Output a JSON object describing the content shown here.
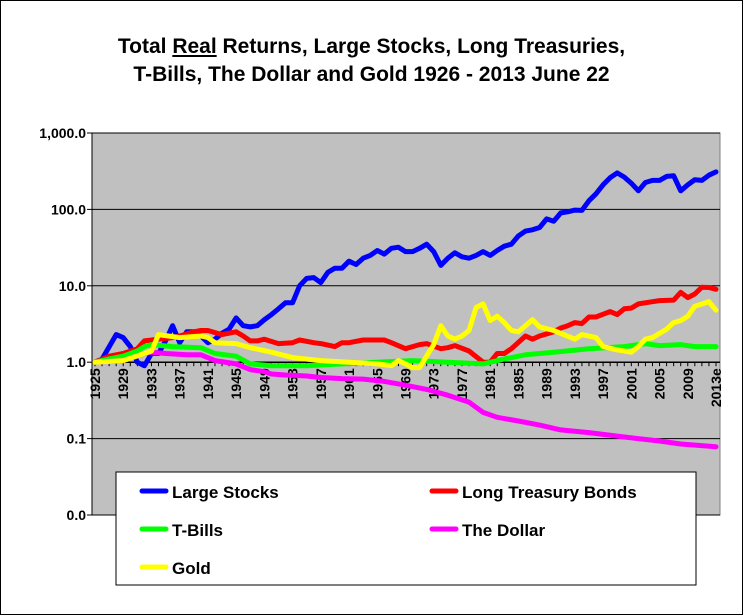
{
  "chart_data": {
    "type": "line",
    "title_line1_pre": "Total ",
    "title_underlined": "Real",
    "title_line1_post": " Returns, Large Stocks, Long Treasuries,",
    "title_line2": "T-Bills, The Dollar and Gold 1926 - 2013 June 22",
    "y_scale": "log",
    "ylim": [
      0.01,
      1000
    ],
    "y_tick_labels": [
      "1,000.0",
      "100.0",
      "10.0",
      "1.0",
      "0.1",
      "0.0"
    ],
    "y_tick_values": [
      1000,
      100,
      10,
      1,
      0.1,
      0.01
    ],
    "xlim": [
      1925,
      2013
    ],
    "x_tick_labels": [
      "1925",
      "1929",
      "1933",
      "1937",
      "1941",
      "1945",
      "1949",
      "1953",
      "1957",
      "1961",
      "1965",
      "1969",
      "1973",
      "1977",
      "1981",
      "1985",
      "1989",
      "1993",
      "1997",
      "2001",
      "2005",
      "2009",
      "2013e"
    ],
    "grid": "horizontal major lines",
    "plot_background": "#c0c0c0",
    "legend_position": "bottom (overlapping plot)",
    "series": [
      {
        "name": "Large Stocks",
        "color": "#0000ff",
        "points": [
          [
            1925,
            1.0
          ],
          [
            1926,
            1.1
          ],
          [
            1928,
            2.3
          ],
          [
            1929,
            2.1
          ],
          [
            1930,
            1.6
          ],
          [
            1931,
            1.0
          ],
          [
            1932,
            0.9
          ],
          [
            1933,
            1.3
          ],
          [
            1934,
            1.3
          ],
          [
            1935,
            1.9
          ],
          [
            1936,
            3.0
          ],
          [
            1937,
            1.8
          ],
          [
            1938,
            2.5
          ],
          [
            1939,
            2.5
          ],
          [
            1940,
            2.2
          ],
          [
            1941,
            1.8
          ],
          [
            1942,
            2.0
          ],
          [
            1943,
            2.4
          ],
          [
            1944,
            2.7
          ],
          [
            1945,
            3.8
          ],
          [
            1946,
            3.0
          ],
          [
            1947,
            2.9
          ],
          [
            1948,
            3.0
          ],
          [
            1949,
            3.6
          ],
          [
            1950,
            4.2
          ],
          [
            1951,
            5.0
          ],
          [
            1952,
            6.0
          ],
          [
            1953,
            6.0
          ],
          [
            1954,
            10
          ],
          [
            1955,
            12.5
          ],
          [
            1956,
            12.8
          ],
          [
            1957,
            11
          ],
          [
            1958,
            15
          ],
          [
            1959,
            17
          ],
          [
            1960,
            17
          ],
          [
            1961,
            21
          ],
          [
            1962,
            19
          ],
          [
            1963,
            23
          ],
          [
            1964,
            25
          ],
          [
            1965,
            29
          ],
          [
            1966,
            26
          ],
          [
            1967,
            31
          ],
          [
            1968,
            32
          ],
          [
            1969,
            28
          ],
          [
            1970,
            28
          ],
          [
            1971,
            31
          ],
          [
            1972,
            35
          ],
          [
            1973,
            28
          ],
          [
            1974,
            18.5
          ],
          [
            1975,
            23
          ],
          [
            1976,
            27
          ],
          [
            1977,
            24
          ],
          [
            1978,
            23
          ],
          [
            1979,
            25
          ],
          [
            1980,
            28
          ],
          [
            1981,
            25
          ],
          [
            1982,
            29
          ],
          [
            1983,
            33
          ],
          [
            1984,
            35
          ],
          [
            1985,
            45
          ],
          [
            1986,
            52
          ],
          [
            1987,
            54
          ],
          [
            1988,
            58
          ],
          [
            1989,
            75
          ],
          [
            1990,
            70
          ],
          [
            1991,
            90
          ],
          [
            1992,
            93
          ],
          [
            1993,
            98
          ],
          [
            1994,
            97
          ],
          [
            1995,
            130
          ],
          [
            1996,
            160
          ],
          [
            1997,
            210
          ],
          [
            1998,
            260
          ],
          [
            1999,
            300
          ],
          [
            2000,
            265
          ],
          [
            2001,
            220
          ],
          [
            2002,
            175
          ],
          [
            2003,
            225
          ],
          [
            2004,
            240
          ],
          [
            2005,
            240
          ],
          [
            2006,
            270
          ],
          [
            2007,
            275
          ],
          [
            2008,
            175
          ],
          [
            2009,
            210
          ],
          [
            2010,
            245
          ],
          [
            2011,
            240
          ],
          [
            2012,
            280
          ],
          [
            2013,
            310
          ]
        ]
      },
      {
        "name": "Long Treasury Bonds",
        "color": "#ff0000",
        "points": [
          [
            1925,
            1.0
          ],
          [
            1927,
            1.2
          ],
          [
            1929,
            1.3
          ],
          [
            1931,
            1.5
          ],
          [
            1932,
            1.9
          ],
          [
            1934,
            2.0
          ],
          [
            1936,
            2.1
          ],
          [
            1937,
            2.2
          ],
          [
            1939,
            2.5
          ],
          [
            1940,
            2.6
          ],
          [
            1941,
            2.6
          ],
          [
            1943,
            2.3
          ],
          [
            1945,
            2.5
          ],
          [
            1946,
            2.2
          ],
          [
            1947,
            1.9
          ],
          [
            1948,
            1.9
          ],
          [
            1949,
            2.0
          ],
          [
            1951,
            1.75
          ],
          [
            1953,
            1.8
          ],
          [
            1954,
            1.95
          ],
          [
            1956,
            1.8
          ],
          [
            1957,
            1.75
          ],
          [
            1959,
            1.6
          ],
          [
            1960,
            1.8
          ],
          [
            1961,
            1.8
          ],
          [
            1963,
            1.95
          ],
          [
            1966,
            1.95
          ],
          [
            1967,
            1.8
          ],
          [
            1969,
            1.5
          ],
          [
            1970,
            1.6
          ],
          [
            1971,
            1.7
          ],
          [
            1972,
            1.75
          ],
          [
            1974,
            1.5
          ],
          [
            1975,
            1.55
          ],
          [
            1976,
            1.65
          ],
          [
            1978,
            1.4
          ],
          [
            1980,
            1.0
          ],
          [
            1981,
            1.0
          ],
          [
            1982,
            1.3
          ],
          [
            1983,
            1.3
          ],
          [
            1984,
            1.5
          ],
          [
            1986,
            2.2
          ],
          [
            1987,
            2.0
          ],
          [
            1988,
            2.2
          ],
          [
            1990,
            2.5
          ],
          [
            1991,
            2.8
          ],
          [
            1992,
            3.0
          ],
          [
            1993,
            3.3
          ],
          [
            1994,
            3.2
          ],
          [
            1995,
            3.9
          ],
          [
            1996,
            3.9
          ],
          [
            1998,
            4.6
          ],
          [
            1999,
            4.2
          ],
          [
            2000,
            5.0
          ],
          [
            2001,
            5.1
          ],
          [
            2002,
            5.8
          ],
          [
            2004,
            6.2
          ],
          [
            2005,
            6.4
          ],
          [
            2007,
            6.5
          ],
          [
            2008,
            8.2
          ],
          [
            2009,
            7.0
          ],
          [
            2010,
            7.8
          ],
          [
            2011,
            9.6
          ],
          [
            2012,
            9.5
          ],
          [
            2013,
            9.0
          ]
        ]
      },
      {
        "name": "T-Bills",
        "color": "#00ff00",
        "points": [
          [
            1925,
            1.0
          ],
          [
            1927,
            1.1
          ],
          [
            1929,
            1.2
          ],
          [
            1931,
            1.4
          ],
          [
            1932,
            1.6
          ],
          [
            1933,
            1.7
          ],
          [
            1936,
            1.6
          ],
          [
            1940,
            1.55
          ],
          [
            1942,
            1.3
          ],
          [
            1945,
            1.2
          ],
          [
            1947,
            0.95
          ],
          [
            1950,
            0.9
          ],
          [
            1955,
            0.9
          ],
          [
            1960,
            0.95
          ],
          [
            1965,
            1.0
          ],
          [
            1970,
            1.05
          ],
          [
            1975,
            1.0
          ],
          [
            1980,
            0.95
          ],
          [
            1983,
            1.1
          ],
          [
            1986,
            1.25
          ],
          [
            1990,
            1.35
          ],
          [
            1995,
            1.5
          ],
          [
            2000,
            1.6
          ],
          [
            2003,
            1.75
          ],
          [
            2005,
            1.65
          ],
          [
            2008,
            1.7
          ],
          [
            2010,
            1.6
          ],
          [
            2013,
            1.6
          ]
        ]
      },
      {
        "name": "The Dollar",
        "color": "#ff00ff",
        "points": [
          [
            1925,
            1.0
          ],
          [
            1929,
            1.05
          ],
          [
            1932,
            1.3
          ],
          [
            1933,
            1.35
          ],
          [
            1935,
            1.3
          ],
          [
            1938,
            1.25
          ],
          [
            1940,
            1.25
          ],
          [
            1942,
            1.05
          ],
          [
            1945,
            0.95
          ],
          [
            1947,
            0.8
          ],
          [
            1949,
            0.75
          ],
          [
            1950,
            0.7
          ],
          [
            1952,
            0.68
          ],
          [
            1955,
            0.66
          ],
          [
            1957,
            0.63
          ],
          [
            1960,
            0.61
          ],
          [
            1963,
            0.6
          ],
          [
            1966,
            0.56
          ],
          [
            1969,
            0.5
          ],
          [
            1972,
            0.44
          ],
          [
            1975,
            0.37
          ],
          [
            1978,
            0.3
          ],
          [
            1980,
            0.22
          ],
          [
            1982,
            0.19
          ],
          [
            1985,
            0.17
          ],
          [
            1988,
            0.15
          ],
          [
            1991,
            0.13
          ],
          [
            1995,
            0.12
          ],
          [
            2000,
            0.105
          ],
          [
            2005,
            0.093
          ],
          [
            2008,
            0.085
          ],
          [
            2013,
            0.078
          ]
        ]
      },
      {
        "name": "Gold",
        "color": "#ffff00",
        "points": [
          [
            1925,
            1.0
          ],
          [
            1929,
            1.05
          ],
          [
            1932,
            1.3
          ],
          [
            1933,
            1.4
          ],
          [
            1934,
            2.3
          ],
          [
            1937,
            2.1
          ],
          [
            1940,
            2.2
          ],
          [
            1941,
            2.1
          ],
          [
            1942,
            1.8
          ],
          [
            1945,
            1.75
          ],
          [
            1947,
            1.55
          ],
          [
            1950,
            1.35
          ],
          [
            1953,
            1.15
          ],
          [
            1957,
            1.05
          ],
          [
            1961,
            1.0
          ],
          [
            1965,
            0.95
          ],
          [
            1967,
            0.9
          ],
          [
            1968,
            1.05
          ],
          [
            1969,
            0.95
          ],
          [
            1970,
            0.85
          ],
          [
            1971,
            0.85
          ],
          [
            1973,
            1.7
          ],
          [
            1974,
            3.0
          ],
          [
            1975,
            2.2
          ],
          [
            1976,
            2.0
          ],
          [
            1977,
            2.2
          ],
          [
            1978,
            2.6
          ],
          [
            1979,
            5.2
          ],
          [
            1980,
            5.8
          ],
          [
            1981,
            3.5
          ],
          [
            1982,
            4.0
          ],
          [
            1983,
            3.3
          ],
          [
            1984,
            2.6
          ],
          [
            1985,
            2.5
          ],
          [
            1987,
            3.6
          ],
          [
            1988,
            2.9
          ],
          [
            1990,
            2.6
          ],
          [
            1993,
            2.0
          ],
          [
            1994,
            2.3
          ],
          [
            1996,
            2.1
          ],
          [
            1997,
            1.6
          ],
          [
            1999,
            1.45
          ],
          [
            2001,
            1.35
          ],
          [
            2002,
            1.6
          ],
          [
            2003,
            2.0
          ],
          [
            2004,
            2.1
          ],
          [
            2006,
            2.7
          ],
          [
            2007,
            3.3
          ],
          [
            2008,
            3.5
          ],
          [
            2009,
            4.0
          ],
          [
            2010,
            5.4
          ],
          [
            2012,
            6.2
          ],
          [
            2013,
            4.8
          ]
        ]
      }
    ]
  }
}
